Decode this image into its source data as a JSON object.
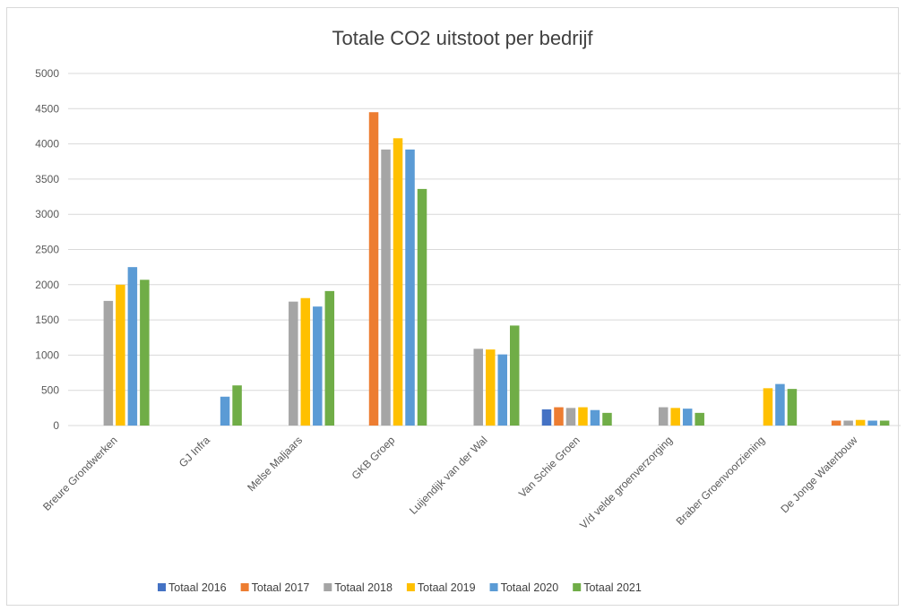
{
  "chart_data": {
    "type": "bar",
    "title": "Totale CO2 uitstoot per bedrijf",
    "xlabel": "",
    "ylabel": "",
    "ylim": [
      0,
      5000
    ],
    "yticks": [
      0,
      500,
      1000,
      1500,
      2000,
      2500,
      3000,
      3500,
      4000,
      4500,
      5000
    ],
    "grid": true,
    "legend_position": "bottom",
    "categories": [
      "Breure Grondwerken",
      "GJ Infra",
      "Melse Maljaars",
      "GKB Groep",
      "Luijendijk van der Wal",
      "Van Schie Groen",
      "V/d velde groenverzorging",
      "Braber Groenvoorziening",
      "De Jonge Waterbouw"
    ],
    "series": [
      {
        "name": "Totaal 2016",
        "color": "#4472c4",
        "values": [
          0,
          0,
          0,
          0,
          0,
          230,
          0,
          0,
          0
        ]
      },
      {
        "name": "Totaal 2017",
        "color": "#ed7d31",
        "values": [
          0,
          0,
          0,
          4450,
          0,
          260,
          0,
          0,
          70
        ]
      },
      {
        "name": "Totaal 2018",
        "color": "#a5a5a5",
        "values": [
          1770,
          0,
          1760,
          3920,
          1090,
          250,
          260,
          0,
          70
        ]
      },
      {
        "name": "Totaal 2019",
        "color": "#ffc000",
        "values": [
          2000,
          0,
          1810,
          4080,
          1080,
          260,
          250,
          530,
          80
        ]
      },
      {
        "name": "Totaal 2020",
        "color": "#5b9bd5",
        "values": [
          2250,
          410,
          1690,
          3920,
          1010,
          220,
          240,
          590,
          70
        ]
      },
      {
        "name": "Totaal 2021",
        "color": "#70ad47",
        "values": [
          2070,
          570,
          1910,
          3360,
          1420,
          180,
          180,
          520,
          70
        ]
      }
    ]
  }
}
